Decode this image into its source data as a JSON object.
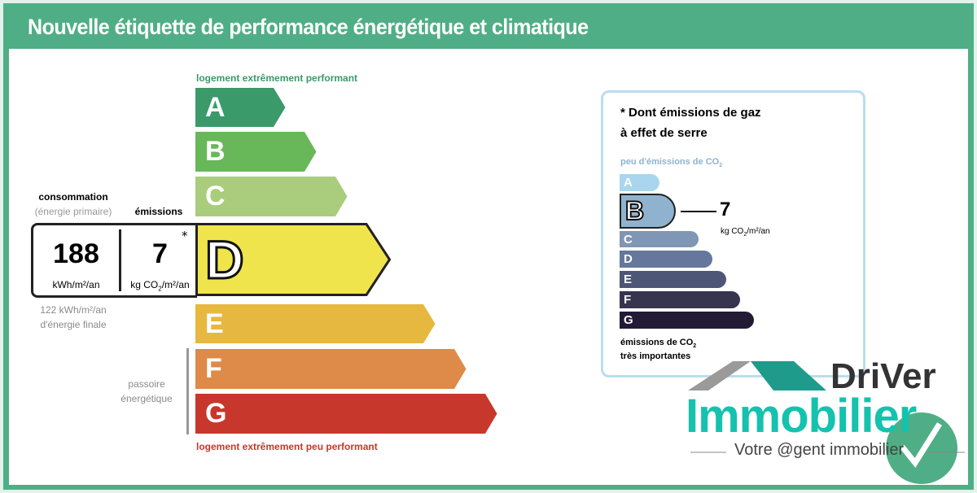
{
  "title": "Nouvelle étiquette de performance énergétique et climatique",
  "energy": {
    "top_label": "logement extrêmement performant",
    "bottom_label": "logement extrêmement peu performant",
    "classes": [
      {
        "letter": "A",
        "color": "#3a9a6a"
      },
      {
        "letter": "B",
        "color": "#68b85a"
      },
      {
        "letter": "C",
        "color": "#a9cd7c"
      },
      {
        "letter": "D",
        "color": "#f0e44c"
      },
      {
        "letter": "E",
        "color": "#e7b83f"
      },
      {
        "letter": "F",
        "color": "#de8a48"
      },
      {
        "letter": "G",
        "color": "#c8372c"
      }
    ],
    "current_class": "D",
    "passoire_label_1": "passoire",
    "passoire_label_2": "énergétique"
  },
  "readout": {
    "consumption_label": "consommation",
    "consumption_sub": "(énergie primaire)",
    "emissions_label": "émissions",
    "consumption_value": "188",
    "consumption_unit": "kWh/m²/an",
    "emissions_value": "7",
    "emissions_unit_pre": "kg CO",
    "emissions_unit_sub": "2",
    "emissions_unit_post": "/m²/an",
    "asterisk": "*",
    "final_1": "122 kWh/m²/an",
    "final_2": "d'énergie finale"
  },
  "ges": {
    "title_1": "* Dont émissions de gaz",
    "title_2": "à effet de serre",
    "top_label": "peu d'émissions de CO",
    "sub": "2",
    "bottom_label_1": "émissions de CO",
    "bottom_label_2": "très importantes",
    "classes": [
      {
        "letter": "A",
        "color": "#a9d6ee"
      },
      {
        "letter": "B",
        "color": "#8fb3cf"
      },
      {
        "letter": "C",
        "color": "#7f96b4"
      },
      {
        "letter": "D",
        "color": "#65779a"
      },
      {
        "letter": "E",
        "color": "#4d5677"
      },
      {
        "letter": "F",
        "color": "#36344f"
      },
      {
        "letter": "G",
        "color": "#231a36"
      }
    ],
    "current_class": "B",
    "value": "7",
    "unit_pre": "kg CO",
    "unit_post": "/m²/an"
  },
  "logo": {
    "brand_1": "DriVer",
    "brand_2": "Immobilier",
    "tagline": "Votre @gent immobilier"
  }
}
